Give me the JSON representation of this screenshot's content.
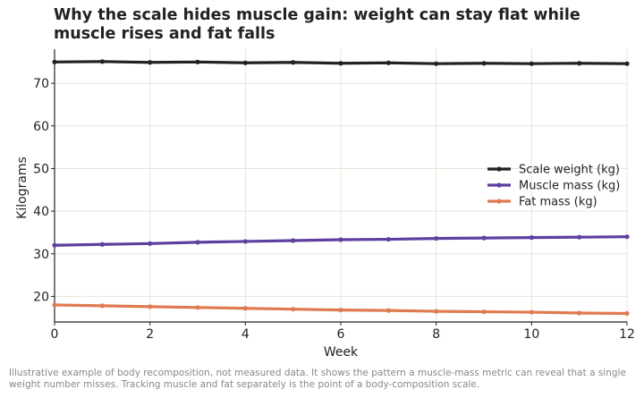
{
  "chart_data": {
    "type": "line",
    "title": "Why the scale hides muscle gain: weight can stay flat while muscle rises and fat falls",
    "xlabel": "Week",
    "ylabel": "Kilograms",
    "xlim": [
      0,
      12
    ],
    "ylim": [
      14,
      78
    ],
    "xticks": [
      0,
      2,
      4,
      6,
      8,
      10,
      12
    ],
    "yticks": [
      20,
      30,
      40,
      50,
      60,
      70
    ],
    "grid": true,
    "legend": "center-right",
    "x": [
      0,
      1,
      2,
      3,
      4,
      5,
      6,
      7,
      8,
      9,
      10,
      11,
      12
    ],
    "series": [
      {
        "name": "Scale weight (kg)",
        "color": "#222222",
        "values": [
          75.0,
          75.1,
          74.9,
          75.0,
          74.8,
          74.9,
          74.7,
          74.8,
          74.6,
          74.7,
          74.6,
          74.7,
          74.6
        ]
      },
      {
        "name": "Muscle mass (kg)",
        "color": "#5e3fa0",
        "values": [
          32.0,
          32.2,
          32.4,
          32.7,
          32.9,
          33.1,
          33.3,
          33.4,
          33.6,
          33.7,
          33.8,
          33.9,
          34.0
        ]
      },
      {
        "name": "Fat mass (kg)",
        "color": "#e07a50",
        "values": [
          18.0,
          17.8,
          17.6,
          17.4,
          17.2,
          17.0,
          16.8,
          16.7,
          16.5,
          16.4,
          16.3,
          16.1,
          16.0
        ]
      }
    ],
    "caption": "Illustrative example of body recomposition, not measured data. It shows the pattern a muscle-mass metric can reveal that a single weight number misses. Tracking muscle and fat separately is the point of a body-composition scale."
  }
}
